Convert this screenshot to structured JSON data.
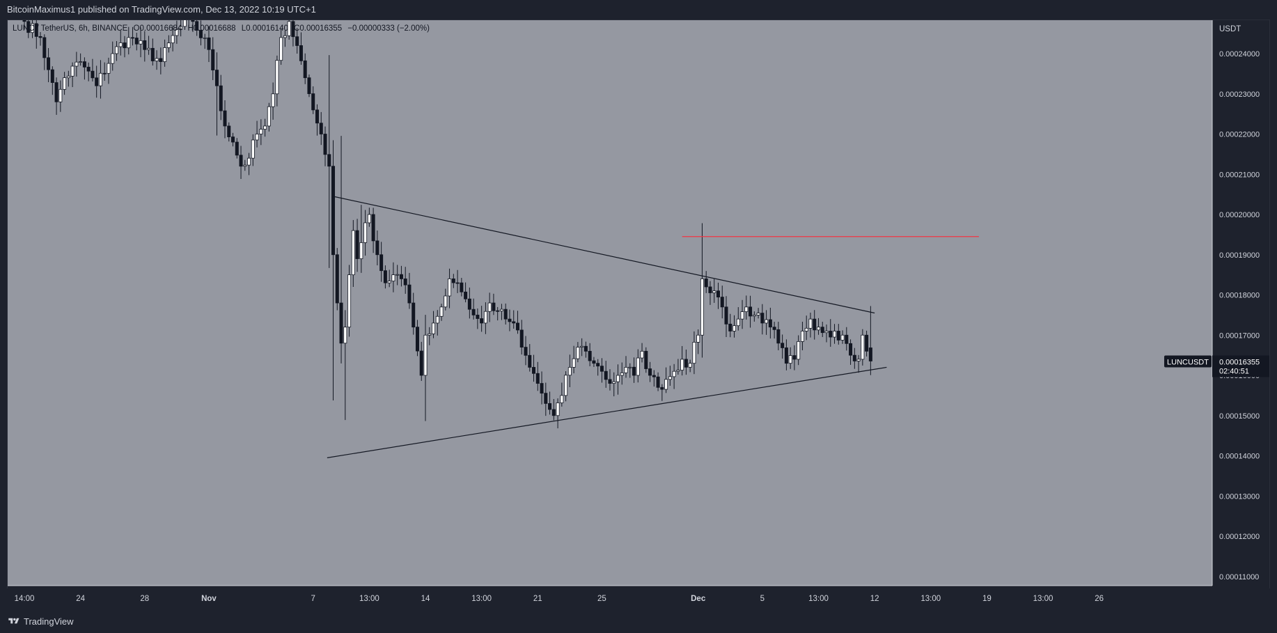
{
  "header": {
    "published_text": "BitcoinMaximus1 published on TradingView.com, Dec 13, 2022 10:19 UTC+1"
  },
  "symbol_bar": {
    "title": "LUNC / TetherUS, 6h, BINANCE",
    "open": "O0.00016684",
    "high": "H0.00016688",
    "low": "L0.00016140",
    "close": "C0.00016355",
    "change": "−0.00000333 (−2.00%)"
  },
  "footer": {
    "brand": "TradingView",
    "logo_icon": "tradingview-logo-icon"
  },
  "colors": {
    "chart_bg": "#9598a1",
    "candle_up": "#ffffff",
    "candle_down": "#131722",
    "wick": "#131722",
    "trendline": "#131722",
    "resistance_line": "#f23645",
    "axis_text": "#d1d4dc",
    "price_label_bg": "#131722"
  },
  "chart_data": {
    "type": "candlestick",
    "title": "LUNC / TetherUS, 6h, BINANCE",
    "ylabel": "USDT",
    "ylim": [
      0.000104,
      0.000253
    ],
    "grid": false,
    "y_ticks": [
      "0.00011000",
      "0.00012000",
      "0.00013000",
      "0.00014000",
      "0.00015000",
      "0.00016000",
      "0.00017000",
      "0.00018000",
      "0.00019000",
      "0.00020000",
      "0.00021000",
      "0.00022000",
      "0.00023000",
      "0.00024000"
    ],
    "x_ticks": [
      {
        "label": "14:00",
        "bar": 0
      },
      {
        "label": "24",
        "bar": 14
      },
      {
        "label": "28",
        "bar": 30
      },
      {
        "label": "Nov",
        "bar": 46
      },
      {
        "label": "7",
        "bar": 72
      },
      {
        "label": "13:00",
        "bar": 86
      },
      {
        "label": "14",
        "bar": 100
      },
      {
        "label": "13:00",
        "bar": 114
      },
      {
        "label": "21",
        "bar": 128
      },
      {
        "label": "25",
        "bar": 144
      },
      {
        "label": "Dec",
        "bar": 168
      },
      {
        "label": "5",
        "bar": 184
      },
      {
        "label": "13:00",
        "bar": 198
      },
      {
        "label": "12",
        "bar": 212
      },
      {
        "label": "13:00",
        "bar": 226
      },
      {
        "label": "19",
        "bar": 240
      },
      {
        "label": "13:00",
        "bar": 254
      },
      {
        "label": "26",
        "bar": 268
      }
    ],
    "keypoints": [
      {
        "bar": 0,
        "close": 0.000248
      },
      {
        "bar": 4,
        "close": 0.000244
      },
      {
        "bar": 6,
        "close": 0.000236
      },
      {
        "bar": 8,
        "close": 0.000228
      },
      {
        "bar": 10,
        "close": 0.000234
      },
      {
        "bar": 14,
        "close": 0.000238
      },
      {
        "bar": 18,
        "close": 0.000232
      },
      {
        "bar": 22,
        "close": 0.00024
      },
      {
        "bar": 26,
        "close": 0.000244
      },
      {
        "bar": 30,
        "close": 0.000241
      },
      {
        "bar": 34,
        "close": 0.000238
      },
      {
        "bar": 38,
        "close": 0.000246
      },
      {
        "bar": 42,
        "close": 0.000248
      },
      {
        "bar": 46,
        "close": 0.000241
      },
      {
        "bar": 48,
        "close": 0.000232
      },
      {
        "bar": 50,
        "close": 0.000222
      },
      {
        "bar": 52,
        "close": 0.000218
      },
      {
        "bar": 54,
        "close": 0.000212
      },
      {
        "bar": 56,
        "close": 0.000214
      },
      {
        "bar": 58,
        "close": 0.00022
      },
      {
        "bar": 60,
        "close": 0.000222
      },
      {
        "bar": 62,
        "close": 0.00023
      },
      {
        "bar": 64,
        "close": 0.000244
      },
      {
        "bar": 66,
        "close": 0.000248
      },
      {
        "bar": 68,
        "close": 0.000242
      },
      {
        "bar": 70,
        "close": 0.000234
      },
      {
        "bar": 72,
        "close": 0.000226
      },
      {
        "bar": 74,
        "close": 0.00022
      },
      {
        "bar": 76,
        "close": 0.000212
      },
      {
        "bar": 77,
        "close": 0.00019
      },
      {
        "bar": 78,
        "close": 0.000178
      },
      {
        "bar": 79,
        "close": 0.000168
      },
      {
        "bar": 80,
        "close": 0.000172
      },
      {
        "bar": 81,
        "close": 0.000185
      },
      {
        "bar": 82,
        "close": 0.000196
      },
      {
        "bar": 83,
        "close": 0.000189
      },
      {
        "bar": 84,
        "close": 0.000193
      },
      {
        "bar": 86,
        "close": 0.0002
      },
      {
        "bar": 88,
        "close": 0.00019
      },
      {
        "bar": 90,
        "close": 0.000183
      },
      {
        "bar": 92,
        "close": 0.000185
      },
      {
        "bar": 94,
        "close": 0.000184
      },
      {
        "bar": 96,
        "close": 0.000178
      },
      {
        "bar": 97,
        "close": 0.000172
      },
      {
        "bar": 99,
        "close": 0.00016
      },
      {
        "bar": 100,
        "close": 0.00017
      },
      {
        "bar": 102,
        "close": 0.000173
      },
      {
        "bar": 104,
        "close": 0.000177
      },
      {
        "bar": 106,
        "close": 0.000184
      },
      {
        "bar": 108,
        "close": 0.000183
      },
      {
        "bar": 110,
        "close": 0.000179
      },
      {
        "bar": 112,
        "close": 0.000175
      },
      {
        "bar": 114,
        "close": 0.000173
      },
      {
        "bar": 116,
        "close": 0.000178
      },
      {
        "bar": 118,
        "close": 0.000176
      },
      {
        "bar": 120,
        "close": 0.000174
      },
      {
        "bar": 122,
        "close": 0.000173
      },
      {
        "bar": 124,
        "close": 0.000167
      },
      {
        "bar": 126,
        "close": 0.000162
      },
      {
        "bar": 128,
        "close": 0.000158
      },
      {
        "bar": 130,
        "close": 0.000153
      },
      {
        "bar": 132,
        "close": 0.00015
      },
      {
        "bar": 134,
        "close": 0.000155
      },
      {
        "bar": 136,
        "close": 0.000162
      },
      {
        "bar": 138,
        "close": 0.000167
      },
      {
        "bar": 140,
        "close": 0.000166
      },
      {
        "bar": 142,
        "close": 0.000163
      },
      {
        "bar": 144,
        "close": 0.000161
      },
      {
        "bar": 146,
        "close": 0.000158
      },
      {
        "bar": 148,
        "close": 0.00016
      },
      {
        "bar": 150,
        "close": 0.000162
      },
      {
        "bar": 152,
        "close": 0.00016
      },
      {
        "bar": 154,
        "close": 0.000166
      },
      {
        "bar": 156,
        "close": 0.00016
      },
      {
        "bar": 158,
        "close": 0.000157
      },
      {
        "bar": 160,
        "close": 0.000159
      },
      {
        "bar": 162,
        "close": 0.000161
      },
      {
        "bar": 164,
        "close": 0.000164
      },
      {
        "bar": 166,
        "close": 0.000163
      },
      {
        "bar": 168,
        "close": 0.00017
      },
      {
        "bar": 169,
        "close": 0.000184
      },
      {
        "bar": 170,
        "close": 0.000182
      },
      {
        "bar": 172,
        "close": 0.000181
      },
      {
        "bar": 174,
        "close": 0.000177
      },
      {
        "bar": 176,
        "close": 0.000171
      },
      {
        "bar": 178,
        "close": 0.000174
      },
      {
        "bar": 180,
        "close": 0.000177
      },
      {
        "bar": 182,
        "close": 0.000175
      },
      {
        "bar": 184,
        "close": 0.000173
      },
      {
        "bar": 186,
        "close": 0.000172
      },
      {
        "bar": 188,
        "close": 0.000168
      },
      {
        "bar": 190,
        "close": 0.000163
      },
      {
        "bar": 192,
        "close": 0.000164
      },
      {
        "bar": 194,
        "close": 0.000171
      },
      {
        "bar": 196,
        "close": 0.000174
      },
      {
        "bar": 198,
        "close": 0.000172
      },
      {
        "bar": 200,
        "close": 0.000171
      },
      {
        "bar": 202,
        "close": 0.000171
      },
      {
        "bar": 204,
        "close": 0.00017
      },
      {
        "bar": 206,
        "close": 0.000165
      },
      {
        "bar": 208,
        "close": 0.000164
      },
      {
        "bar": 209,
        "close": 0.00017
      },
      {
        "bar": 210,
        "close": 0.000166
      },
      {
        "bar": 211,
        "close": 0.00016355
      }
    ],
    "drawings": {
      "descending_trendline": {
        "start": {
          "bar": 77,
          "price": 0.0002045
        },
        "end": {
          "bar": 212,
          "price": 0.0001755
        }
      },
      "ascending_trendline": {
        "start": {
          "bar": 75.5,
          "price": 0.0001395
        },
        "end": {
          "bar": 215,
          "price": 0.000162
        }
      },
      "resistance_line": {
        "start": {
          "bar": 164,
          "price": 0.0001945
        },
        "end": {
          "bar": 238,
          "price": 0.0001945
        }
      }
    },
    "last_price": {
      "symbol": "LUNCUSDT",
      "price": "0.00016355",
      "value": 0.00016355,
      "countdown": "02:40:51"
    }
  }
}
